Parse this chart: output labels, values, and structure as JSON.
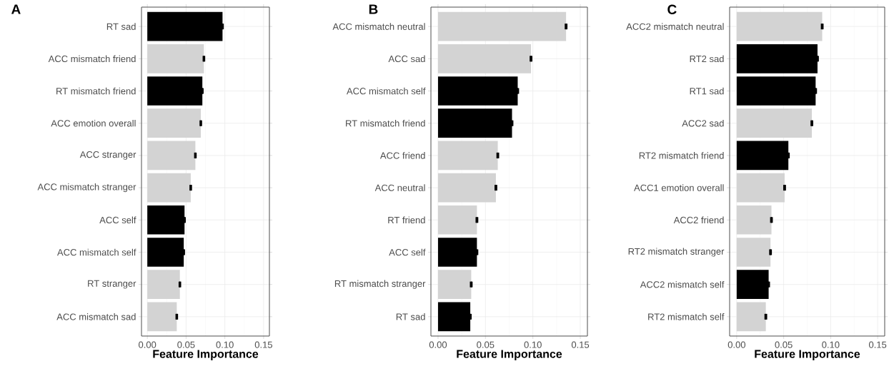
{
  "chart_data": [
    {
      "type": "bar",
      "orientation": "horizontal",
      "title": "A",
      "xlabel": "Feature Importance",
      "categories": [
        "RT sad",
        "ACC mismatch friend",
        "RT mismatch friend",
        "ACC emotion overall",
        "ACC stranger",
        "ACC mismatch stranger",
        "ACC self",
        "ACC mismatch self",
        "RT stranger",
        "ACC mismatch sad"
      ],
      "values": [
        0.097,
        0.073,
        0.071,
        0.069,
        0.062,
        0.056,
        0.048,
        0.047,
        0.042,
        0.038
      ],
      "errors": [
        0.0005,
        0.0005,
        0.0005,
        0.0005,
        0.0005,
        0.0005,
        0.0005,
        0.0005,
        0.0005,
        0.0005
      ],
      "colors": [
        "#000000",
        "#d3d3d3",
        "#000000",
        "#d3d3d3",
        "#d3d3d3",
        "#d3d3d3",
        "#000000",
        "#000000",
        "#d3d3d3",
        "#d3d3d3"
      ],
      "xlim": [
        -0.0075,
        0.1575
      ],
      "xticks": [
        {
          "value": 0,
          "label": "0.00"
        },
        {
          "value": 0.05,
          "label": "0.05"
        },
        {
          "value": 0.1,
          "label": "0.10"
        },
        {
          "value": 0.15,
          "label": "0.15"
        }
      ],
      "grid": true
    },
    {
      "type": "bar",
      "orientation": "horizontal",
      "title": "B",
      "xlabel": "Feature Importance",
      "categories": [
        "ACC mismatch neutral",
        "ACC sad",
        "ACC mismatch self",
        "RT mismatch friend",
        "ACC friend",
        "ACC neutral",
        "RT friend",
        "ACC self",
        "RT mismatch stranger",
        "RT sad"
      ],
      "values": [
        0.135,
        0.098,
        0.084,
        0.078,
        0.063,
        0.061,
        0.041,
        0.041,
        0.035,
        0.034
      ],
      "errors": [
        0.0005,
        0.0005,
        0.0005,
        0.0005,
        0.0005,
        0.0005,
        0.0005,
        0.0005,
        0.0005,
        0.0005
      ],
      "colors": [
        "#d3d3d3",
        "#d3d3d3",
        "#000000",
        "#000000",
        "#d3d3d3",
        "#d3d3d3",
        "#d3d3d3",
        "#000000",
        "#d3d3d3",
        "#000000"
      ],
      "xlim": [
        -0.0075,
        0.1575
      ],
      "xticks": [
        {
          "value": 0,
          "label": "0.00"
        },
        {
          "value": 0.05,
          "label": "0.05"
        },
        {
          "value": 0.1,
          "label": "0.10"
        },
        {
          "value": 0.15,
          "label": "0.15"
        }
      ],
      "grid": true
    },
    {
      "type": "bar",
      "orientation": "horizontal",
      "title": "C",
      "xlabel": "Feature Importance",
      "categories": [
        "ACC2 mismatch neutral",
        "RT2 sad",
        "RT1 sad",
        "ACC2 sad",
        "RT2 mismatch friend",
        "ACC1 emotion overall",
        "ACC2 friend",
        "RT2 mismatch stranger",
        "ACC2 mismatch self",
        "RT2 mismatch self"
      ],
      "values": [
        0.091,
        0.086,
        0.084,
        0.08,
        0.055,
        0.051,
        0.037,
        0.036,
        0.034,
        0.031
      ],
      "errors": [
        0.0005,
        0.0005,
        0.0005,
        0.0005,
        0.0005,
        0.0005,
        0.0005,
        0.0005,
        0.0005,
        0.0005
      ],
      "colors": [
        "#d3d3d3",
        "#000000",
        "#000000",
        "#d3d3d3",
        "#000000",
        "#d3d3d3",
        "#d3d3d3",
        "#d3d3d3",
        "#000000",
        "#d3d3d3"
      ],
      "xlim": [
        -0.0075,
        0.1575
      ],
      "xticks": [
        {
          "value": 0,
          "label": "0.00"
        },
        {
          "value": 0.05,
          "label": "0.05"
        },
        {
          "value": 0.1,
          "label": "0.10"
        },
        {
          "value": 0.15,
          "label": "0.15"
        }
      ],
      "grid": true
    }
  ]
}
